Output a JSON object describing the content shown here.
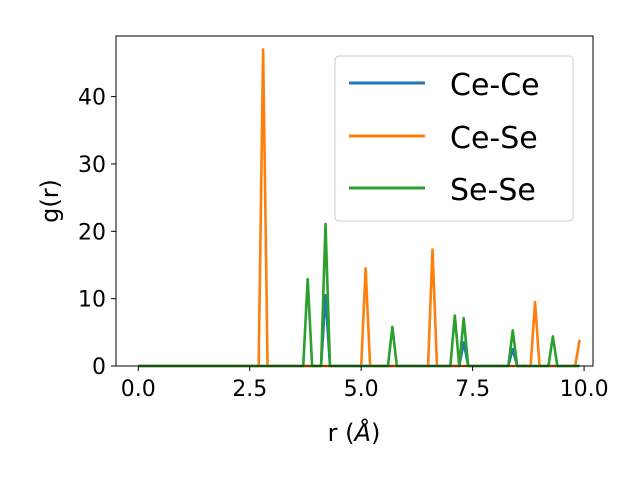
{
  "chart_data": {
    "type": "line",
    "title": "",
    "xlabel_main": "r (",
    "xlabel_unit": "Å",
    "xlabel_close": ")",
    "ylabel": "g(r)",
    "xlim": [
      -0.5,
      10.2
    ],
    "ylim": [
      0,
      49
    ],
    "xticks": [
      0.0,
      2.5,
      5.0,
      7.5,
      10.0
    ],
    "xtick_labels": [
      "0.0",
      "2.5",
      "5.0",
      "7.5",
      "10.0"
    ],
    "yticks": [
      0,
      10,
      20,
      30,
      40
    ],
    "ytick_labels": [
      "0",
      "10",
      "20",
      "30",
      "40"
    ],
    "grid": false,
    "legend_position": "top-right",
    "series": [
      {
        "name": "Ce-Ce",
        "color": "#1f77b4",
        "x": [
          0.0,
          4.1,
          4.2,
          4.3,
          7.2,
          7.3,
          7.4,
          8.3,
          8.4,
          8.5,
          9.9
        ],
        "y": [
          0,
          0,
          10.5,
          0,
          0,
          3.5,
          0,
          0,
          2.5,
          0,
          0
        ]
      },
      {
        "name": "Ce-Se",
        "color": "#ff7f0e",
        "x": [
          0.0,
          2.7,
          2.8,
          2.9,
          5.0,
          5.1,
          5.2,
          6.5,
          6.6,
          6.7,
          8.8,
          8.9,
          9.0,
          9.8,
          9.9
        ],
        "y": [
          0,
          0,
          47,
          0,
          0,
          14.5,
          0,
          0,
          17.3,
          0,
          0,
          9.5,
          0,
          0,
          3.9
        ]
      },
      {
        "name": "Se-Se",
        "color": "#2ca02c",
        "x": [
          0.0,
          3.7,
          3.8,
          3.9,
          4.1,
          4.2,
          4.3,
          5.6,
          5.7,
          5.8,
          7.0,
          7.1,
          7.2,
          7.3,
          7.4,
          8.3,
          8.4,
          8.5,
          9.2,
          9.3,
          9.4,
          9.9
        ],
        "y": [
          0,
          0,
          12.9,
          0,
          0,
          21.1,
          0,
          0,
          5.8,
          0,
          0,
          7.5,
          0,
          7.1,
          0,
          0,
          5.3,
          0,
          0,
          4.4,
          0,
          0
        ]
      }
    ]
  }
}
